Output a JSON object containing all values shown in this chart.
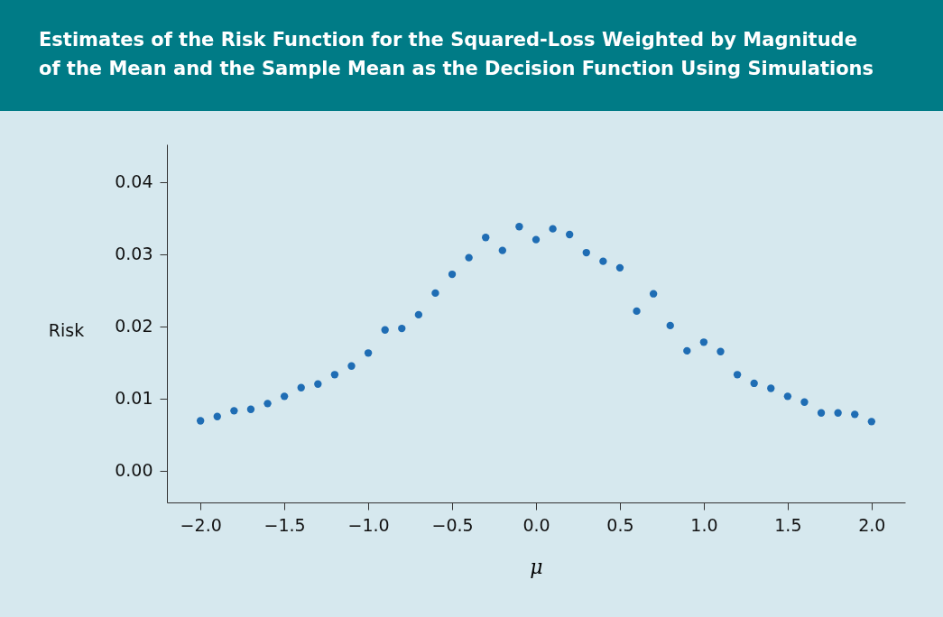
{
  "chart_data": {
    "type": "scatter",
    "title": "Estimates of the Risk Function for the Squared-Loss Weighted by Magnitude\nof the Mean and the Sample Mean as the Decision Function Using Simulations",
    "xlabel": "μ",
    "ylabel": "Risk",
    "marker": "circle",
    "grid": false,
    "legend": false,
    "x": [
      -2.0,
      -1.9,
      -1.8,
      -1.7,
      -1.6,
      -1.5,
      -1.4,
      -1.3,
      -1.2,
      -1.1,
      -1.0,
      -0.9,
      -0.8,
      -0.7,
      -0.6,
      -0.5,
      -0.4,
      -0.3,
      -0.2,
      -0.1,
      0.0,
      0.1,
      0.2,
      0.3,
      0.4,
      0.5,
      0.6,
      0.7,
      0.8,
      0.9,
      1.0,
      1.1,
      1.2,
      1.3,
      1.4,
      1.5,
      1.6,
      1.7,
      1.8,
      1.9,
      2.0
    ],
    "series": [
      {
        "color": "#1f6db4",
        "values": [
          0.0069,
          0.0075,
          0.0083,
          0.0085,
          0.0093,
          0.0103,
          0.0115,
          0.012,
          0.0133,
          0.0145,
          0.0163,
          0.0195,
          0.0197,
          0.0216,
          0.0246,
          0.0272,
          0.0295,
          0.0323,
          0.0305,
          0.0338,
          0.032,
          0.0335,
          0.0327,
          0.0302,
          0.029,
          0.0281,
          0.0221,
          0.0245,
          0.0201,
          0.0166,
          0.0178,
          0.0165,
          0.0133,
          0.0121,
          0.0114,
          0.0103,
          0.0095,
          0.008,
          0.008,
          0.0078,
          0.0068
        ]
      }
    ],
    "xlim": [
      -2.2,
      2.2
    ],
    "ylim": [
      -0.0044,
      0.0452
    ],
    "xticks": [
      {
        "value": -2.0,
        "label": "−2.0"
      },
      {
        "value": -1.5,
        "label": "−1.5"
      },
      {
        "value": -1.0,
        "label": "−1.0"
      },
      {
        "value": -0.5,
        "label": "−0.5"
      },
      {
        "value": 0.0,
        "label": "0.0"
      },
      {
        "value": 0.5,
        "label": "0.5"
      },
      {
        "value": 1.0,
        "label": "1.0"
      },
      {
        "value": 1.5,
        "label": "1.5"
      },
      {
        "value": 2.0,
        "label": "2.0"
      }
    ],
    "yticks": [
      {
        "value": 0.0,
        "label": "0.00"
      },
      0.01,
      0.02,
      0.03,
      0.04
    ]
  }
}
